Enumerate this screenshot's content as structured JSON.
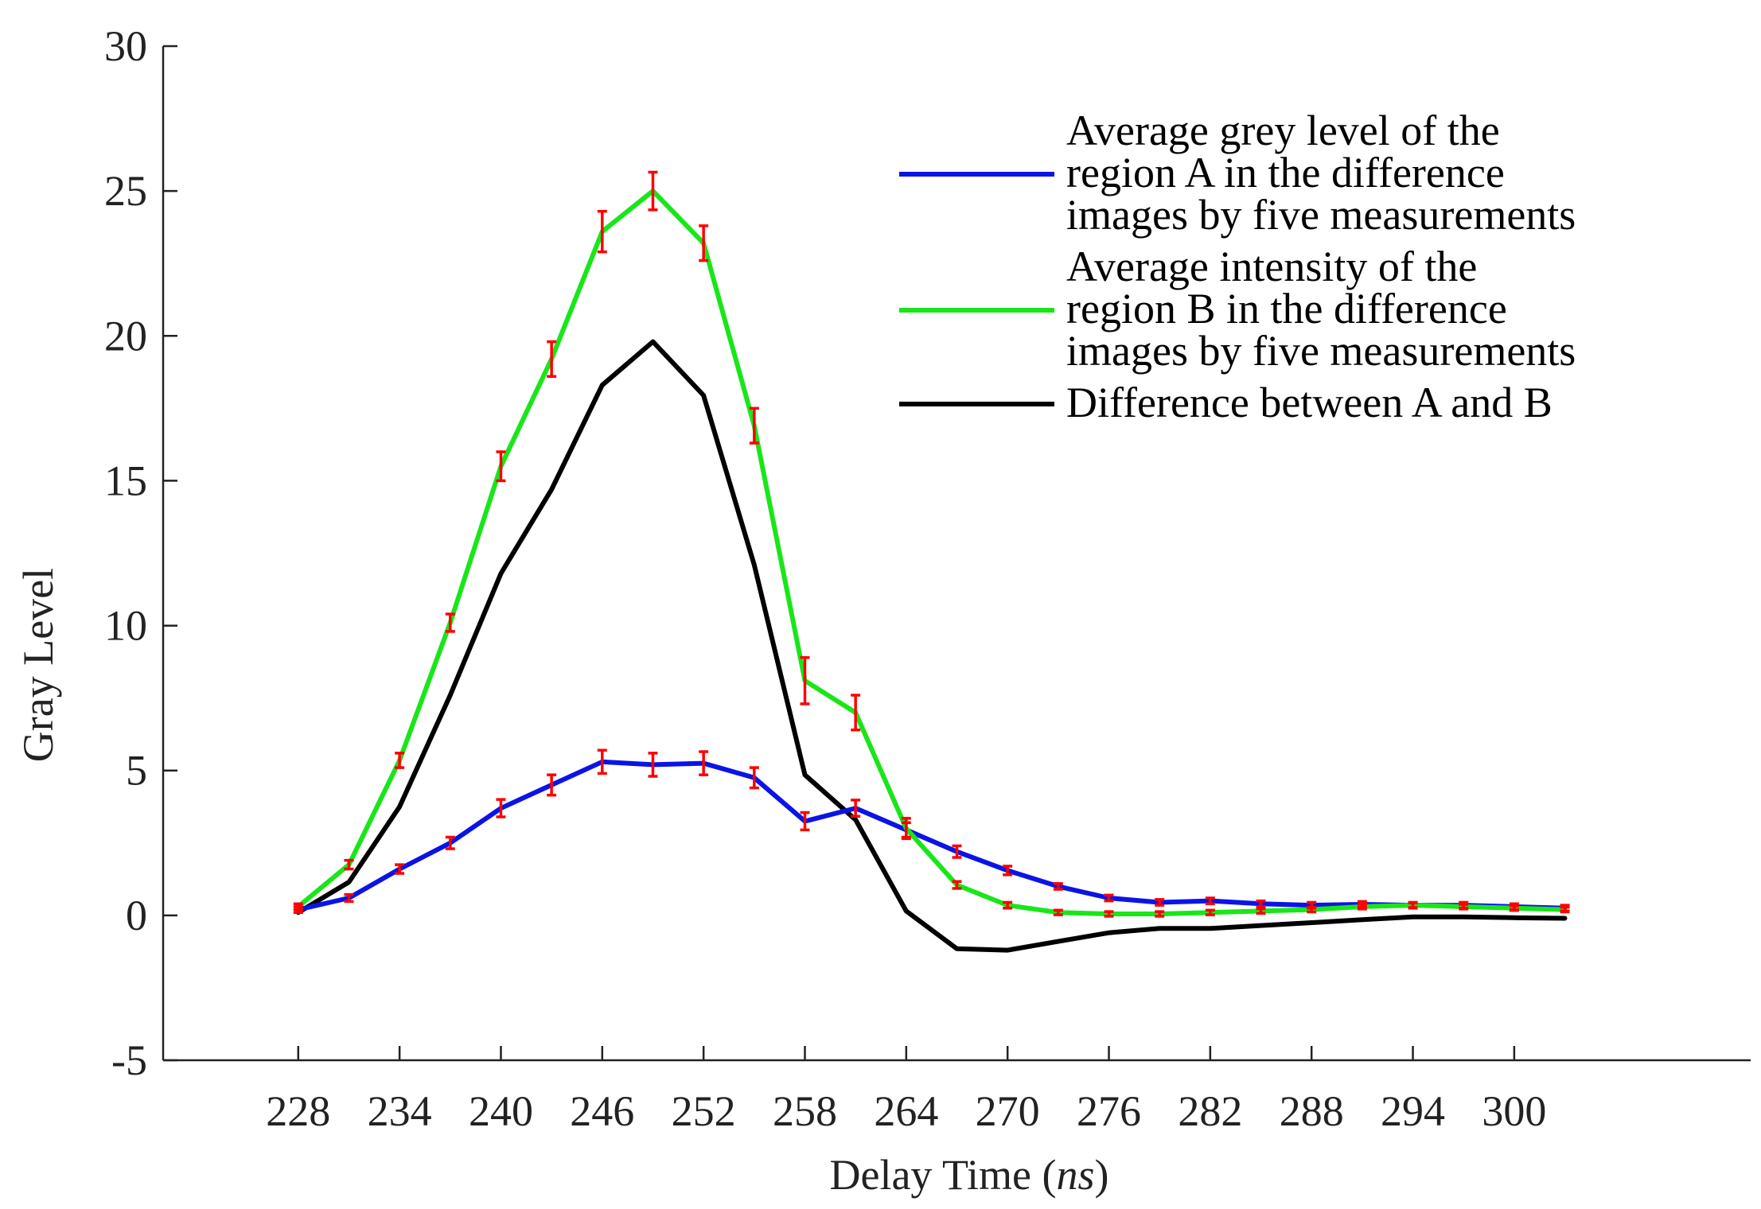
{
  "chart_data": {
    "type": "line",
    "title": "",
    "xlabel_main": "Delay Time (",
    "xlabel_unit": "ns",
    "xlabel_close": ")",
    "ylabel": "Gray Level",
    "xlim": [
      220,
      314
    ],
    "ylim": [
      -5,
      30
    ],
    "xticks": [
      228,
      234,
      240,
      246,
      252,
      258,
      264,
      270,
      276,
      282,
      288,
      294,
      300
    ],
    "yticks": [
      -5,
      0,
      5,
      10,
      15,
      20,
      25,
      30
    ],
    "x": [
      228,
      231,
      234,
      237,
      240,
      243,
      246,
      249,
      252,
      255,
      258,
      261,
      264,
      267,
      270,
      273,
      276,
      279,
      282,
      285,
      288,
      291,
      294,
      297,
      300,
      303
    ],
    "series": [
      {
        "name": "region A",
        "legend_lines": [
          "Average grey level of the",
          "region A in the difference",
          " images by five measurements"
        ],
        "color": "#0a14e6",
        "values": [
          0.2,
          0.6,
          1.6,
          2.5,
          3.7,
          4.5,
          5.3,
          5.2,
          5.25,
          4.75,
          3.25,
          3.7,
          2.95,
          2.2,
          1.55,
          1.0,
          0.6,
          0.45,
          0.5,
          0.4,
          0.35,
          0.38,
          0.35,
          0.35,
          0.3,
          0.25
        ],
        "error": [
          0.1,
          0.12,
          0.15,
          0.2,
          0.3,
          0.35,
          0.4,
          0.4,
          0.4,
          0.35,
          0.3,
          0.28,
          0.25,
          0.2,
          0.15,
          0.1,
          0.1,
          0.1,
          0.1,
          0.1,
          0.1,
          0.1,
          0.1,
          0.1,
          0.1,
          0.1
        ],
        "error_bars": true
      },
      {
        "name": "region B",
        "legend_lines": [
          "Average intensity of the",
          "region B in the difference",
          "images by five measurements"
        ],
        "color": "#19e619",
        "values": [
          0.3,
          1.75,
          5.35,
          10.1,
          15.5,
          19.2,
          23.6,
          25.0,
          23.2,
          16.9,
          8.1,
          7.0,
          3.0,
          1.05,
          0.35,
          0.1,
          0.05,
          0.05,
          0.1,
          0.15,
          0.2,
          0.3,
          0.35,
          0.3,
          0.25,
          0.2
        ],
        "error": [
          0.1,
          0.15,
          0.25,
          0.3,
          0.5,
          0.6,
          0.7,
          0.65,
          0.6,
          0.6,
          0.8,
          0.6,
          0.35,
          0.12,
          0.1,
          0.08,
          0.08,
          0.08,
          0.08,
          0.08,
          0.08,
          0.08,
          0.08,
          0.08,
          0.08,
          0.08
        ],
        "error_bars": true
      },
      {
        "name": "difference",
        "legend_lines": [
          "Difference between A and B"
        ],
        "color": "#000000",
        "values": [
          0.1,
          1.15,
          3.75,
          7.6,
          11.8,
          14.7,
          18.3,
          19.8,
          17.95,
          12.1,
          4.85,
          3.3,
          0.15,
          -1.15,
          -1.2,
          -0.9,
          -0.6,
          -0.45,
          -0.45,
          -0.35,
          -0.25,
          -0.15,
          -0.05,
          -0.05,
          -0.08,
          -0.1
        ],
        "error_bars": false
      }
    ],
    "legend_position": "top-right",
    "errorbar_color": "#ff0000",
    "grid": false
  }
}
